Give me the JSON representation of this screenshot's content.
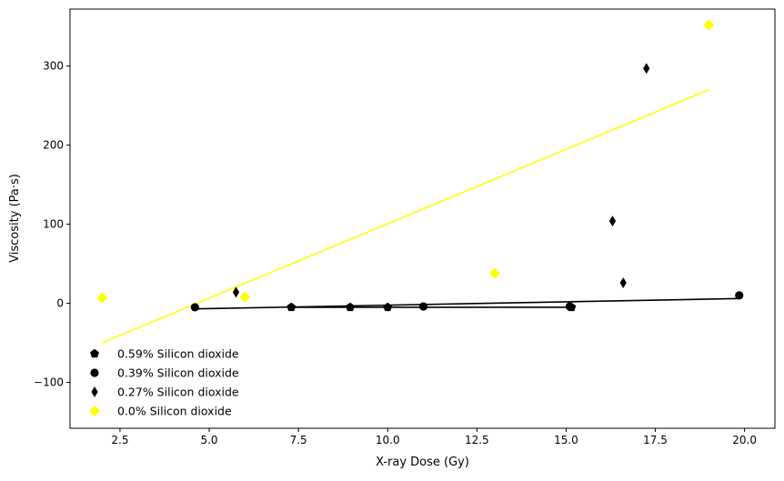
{
  "chart_data": {
    "type": "scatter",
    "title": "",
    "xlabel": "X-ray Dose (Gy)",
    "ylabel": "Viscosity (Pa·s)",
    "xlim": [
      1.1,
      20.85
    ],
    "ylim": [
      -158,
      372
    ],
    "xticks": [
      2.5,
      5.0,
      7.5,
      10.0,
      12.5,
      15.0,
      17.5,
      20.0
    ],
    "yticks": [
      -100,
      0,
      100,
      200,
      300
    ],
    "grid": false,
    "legend_position": "lower-left",
    "series": [
      {
        "name": "0.59% Silicon dioxide",
        "marker": "pentagon",
        "color": "#000000",
        "x": [
          7.3,
          8.95,
          10.0,
          15.15
        ],
        "y": [
          -5,
          -5,
          -5,
          -5
        ],
        "fit": {
          "x": [
            7.3,
            15.15
          ],
          "y": [
            -5,
            -5
          ],
          "color": "#000000"
        }
      },
      {
        "name": "0.39% Silicon dioxide",
        "marker": "circle",
        "color": "#000000",
        "x": [
          4.6,
          11.0,
          15.1,
          19.85
        ],
        "y": [
          -5,
          -4,
          -4,
          10
        ],
        "fit": {
          "x": [
            4.6,
            19.85
          ],
          "y": [
            -7,
            6
          ],
          "color": "#000000"
        }
      },
      {
        "name": "0.27% Silicon dioxide",
        "marker": "thin_diamond",
        "color": "#000000",
        "x": [
          5.75,
          16.3,
          16.6,
          17.25
        ],
        "y": [
          14,
          104,
          26,
          297
        ]
      },
      {
        "name": "0.0% Silicon dioxide",
        "marker": "diamond",
        "color": "#ffff00",
        "x": [
          2.0,
          6.0,
          13.0,
          19.0
        ],
        "y": [
          7,
          8,
          38,
          352
        ],
        "fit": {
          "x": [
            2.0,
            19.0
          ],
          "y": [
            -50,
            270
          ],
          "color": "#ffff00"
        }
      }
    ]
  }
}
